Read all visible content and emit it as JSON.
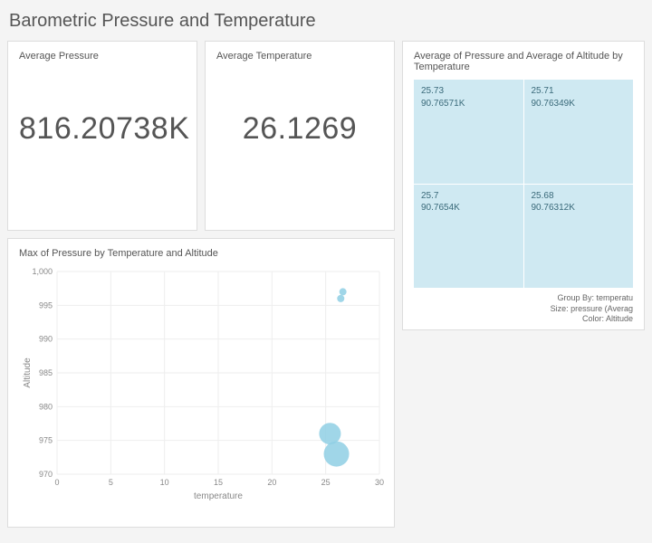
{
  "page": {
    "title": "Barometric Pressure and Temperature"
  },
  "kpi_pressure": {
    "title": "Average Pressure",
    "value": "816.20738K"
  },
  "kpi_temperature": {
    "title": "Average Temperature",
    "value": "26.1269"
  },
  "treemap": {
    "title": "Average of Pressure and Average of Altitude by Temperature",
    "cells": [
      {
        "line1": "25.73",
        "line2": "90.76571K",
        "color": "#cfe9f2"
      },
      {
        "line1": "25.71",
        "line2": "90.76349K",
        "color": "#cfe9f2"
      },
      {
        "line1": "25.7",
        "line2": "90.7654K",
        "color": "#cfe9f2"
      },
      {
        "line1": "25.68",
        "line2": "90.76312K",
        "color": "#cfe9f2"
      }
    ],
    "legend": {
      "line1": "Group By: temperatu",
      "line2": "Size: pressure (Averag",
      "line3": "Color: Altitude"
    }
  },
  "scatter": {
    "type": "scatter-bubble",
    "title": "Max of Pressure by Temperature and Altitude",
    "xlabel": "temperature",
    "ylabel": "Altitude",
    "xlim": [
      0,
      30
    ],
    "ylim": [
      970,
      1000
    ],
    "xtick_step": 5,
    "ytick_step": 5,
    "points": [
      {
        "x": 26.6,
        "y": 997,
        "r": 4,
        "color": "#8fcfe4"
      },
      {
        "x": 26.4,
        "y": 996,
        "r": 4,
        "color": "#8fcfe4"
      },
      {
        "x": 25.4,
        "y": 976,
        "r": 12,
        "color": "#8fcfe4"
      },
      {
        "x": 26.0,
        "y": 973,
        "r": 14,
        "color": "#8fcfe4"
      }
    ],
    "background_color": "#ffffff",
    "grid_color": "#eeeeee",
    "label_fontsize": 10,
    "tick_fontsize": 9
  },
  "colors": {
    "card_bg": "#ffffff",
    "card_border": "#dddddd",
    "page_bg": "#f4f4f4",
    "text_muted": "#555555"
  }
}
